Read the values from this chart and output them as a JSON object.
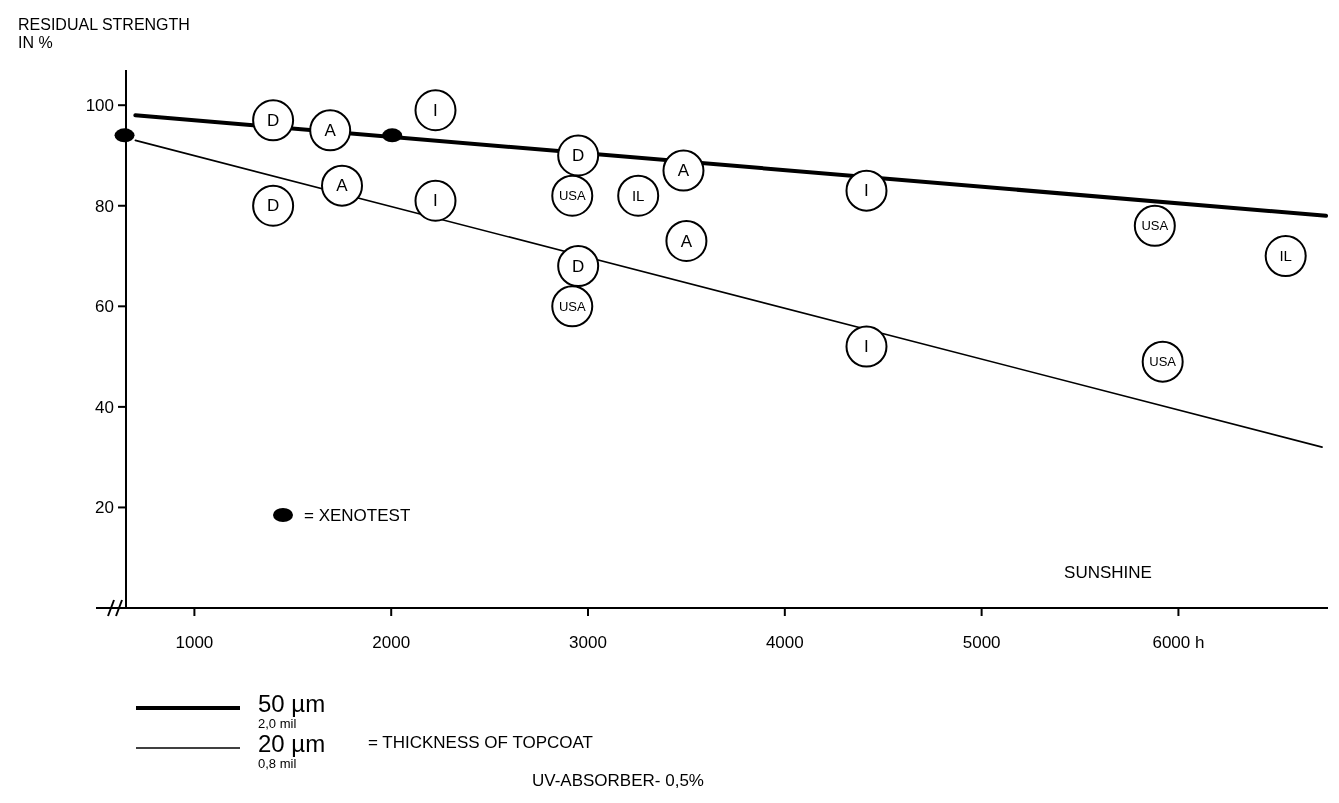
{
  "chart_data": {
    "type": "scatter",
    "ylabel": "RESIDUAL STRENGTH\nIN %",
    "xlabel": "SUNSHINE",
    "xlim": [
      500,
      6760
    ],
    "ylim": [
      0,
      107
    ],
    "xticks": [
      1000,
      2000,
      3000,
      4000,
      5000,
      {
        "value": 6000,
        "label": "6000 h"
      }
    ],
    "yticks": [
      20,
      40,
      60,
      80,
      100
    ],
    "grid": false,
    "legend": "bottom",
    "marker": "circle",
    "annotations": [
      "= THICKNESS OF TOPCOAT",
      "UV-ABSORBER- 0,5%"
    ],
    "series": [
      {
        "name": "50 µm\n2,0 mil",
        "type": "line",
        "marker": "none",
        "color": "#000000",
        "x": [
          700,
          6750
        ],
        "values": [
          98,
          78
        ]
      },
      {
        "name": "20 µm\n0,8 mil",
        "type": "line",
        "marker": "none",
        "color": "#000000",
        "x": [
          700,
          6730
        ],
        "values": [
          93,
          32
        ]
      },
      {
        "name": "= XENOTEST",
        "color": "#000000",
        "x": [
          645,
          2005
        ],
        "values": [
          94,
          94
        ]
      },
      {
        "name": "D",
        "color": "#000000",
        "x": [
          1400,
          1400,
          2950,
          2950
        ],
        "values": [
          97,
          80,
          90,
          68
        ]
      },
      {
        "name": "A",
        "color": "#000000",
        "x": [
          1690,
          1750,
          3485,
          3500
        ],
        "values": [
          95,
          84,
          87,
          73
        ]
      },
      {
        "name": "I",
        "color": "#000000",
        "x": [
          2225,
          2225,
          4415,
          4415
        ],
        "values": [
          99,
          81,
          83,
          52
        ]
      },
      {
        "name": "USA",
        "color": "#000000",
        "x": [
          2920,
          2920,
          5880,
          5920
        ],
        "values": [
          82,
          60,
          76,
          49
        ]
      },
      {
        "name": "IL",
        "color": "#000000",
        "x": [
          3255,
          6545
        ],
        "values": [
          82,
          70
        ]
      }
    ]
  }
}
